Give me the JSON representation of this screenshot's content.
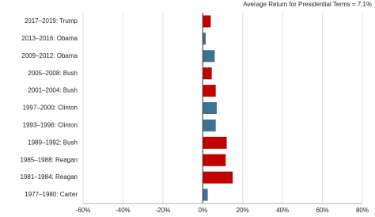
{
  "chart_data": {
    "type": "hbar",
    "title": "Average Return for Presidential Terms = 7.1%",
    "categories": [
      "2017–2019: Trump",
      "2013–2016: Obama",
      "2009–2012: Obama",
      "2005–2008: Bush",
      "2001–2004: Bush",
      "1997–2000: Clinton",
      "1993–1996: Clinton",
      "1989–1992: Bush",
      "1985–1988: Reagan",
      "1981–1984: Reagan",
      "1977–1980: Carter"
    ],
    "values": [
      4,
      1.5,
      6,
      4.5,
      6.5,
      7,
      6.5,
      12,
      11.5,
      15,
      2.5
    ],
    "colors": [
      "#c00000",
      "#3f7190",
      "#3f7190",
      "#c00000",
      "#c00000",
      "#3f7190",
      "#3f7190",
      "#c00000",
      "#c00000",
      "#c00000",
      "#3f7190"
    ],
    "xlim": [
      -60,
      80
    ],
    "xticks": [
      {
        "value": -60,
        "label": "-60%"
      },
      {
        "value": -40,
        "label": "-40%"
      },
      {
        "value": -20,
        "label": "-20%"
      },
      {
        "value": 0,
        "label": "0%"
      },
      {
        "value": 20,
        "label": "20%"
      },
      {
        "value": 40,
        "label": "40%"
      },
      {
        "value": 60,
        "label": "60%"
      },
      {
        "value": 80,
        "label": "80%"
      }
    ],
    "grid": true
  }
}
